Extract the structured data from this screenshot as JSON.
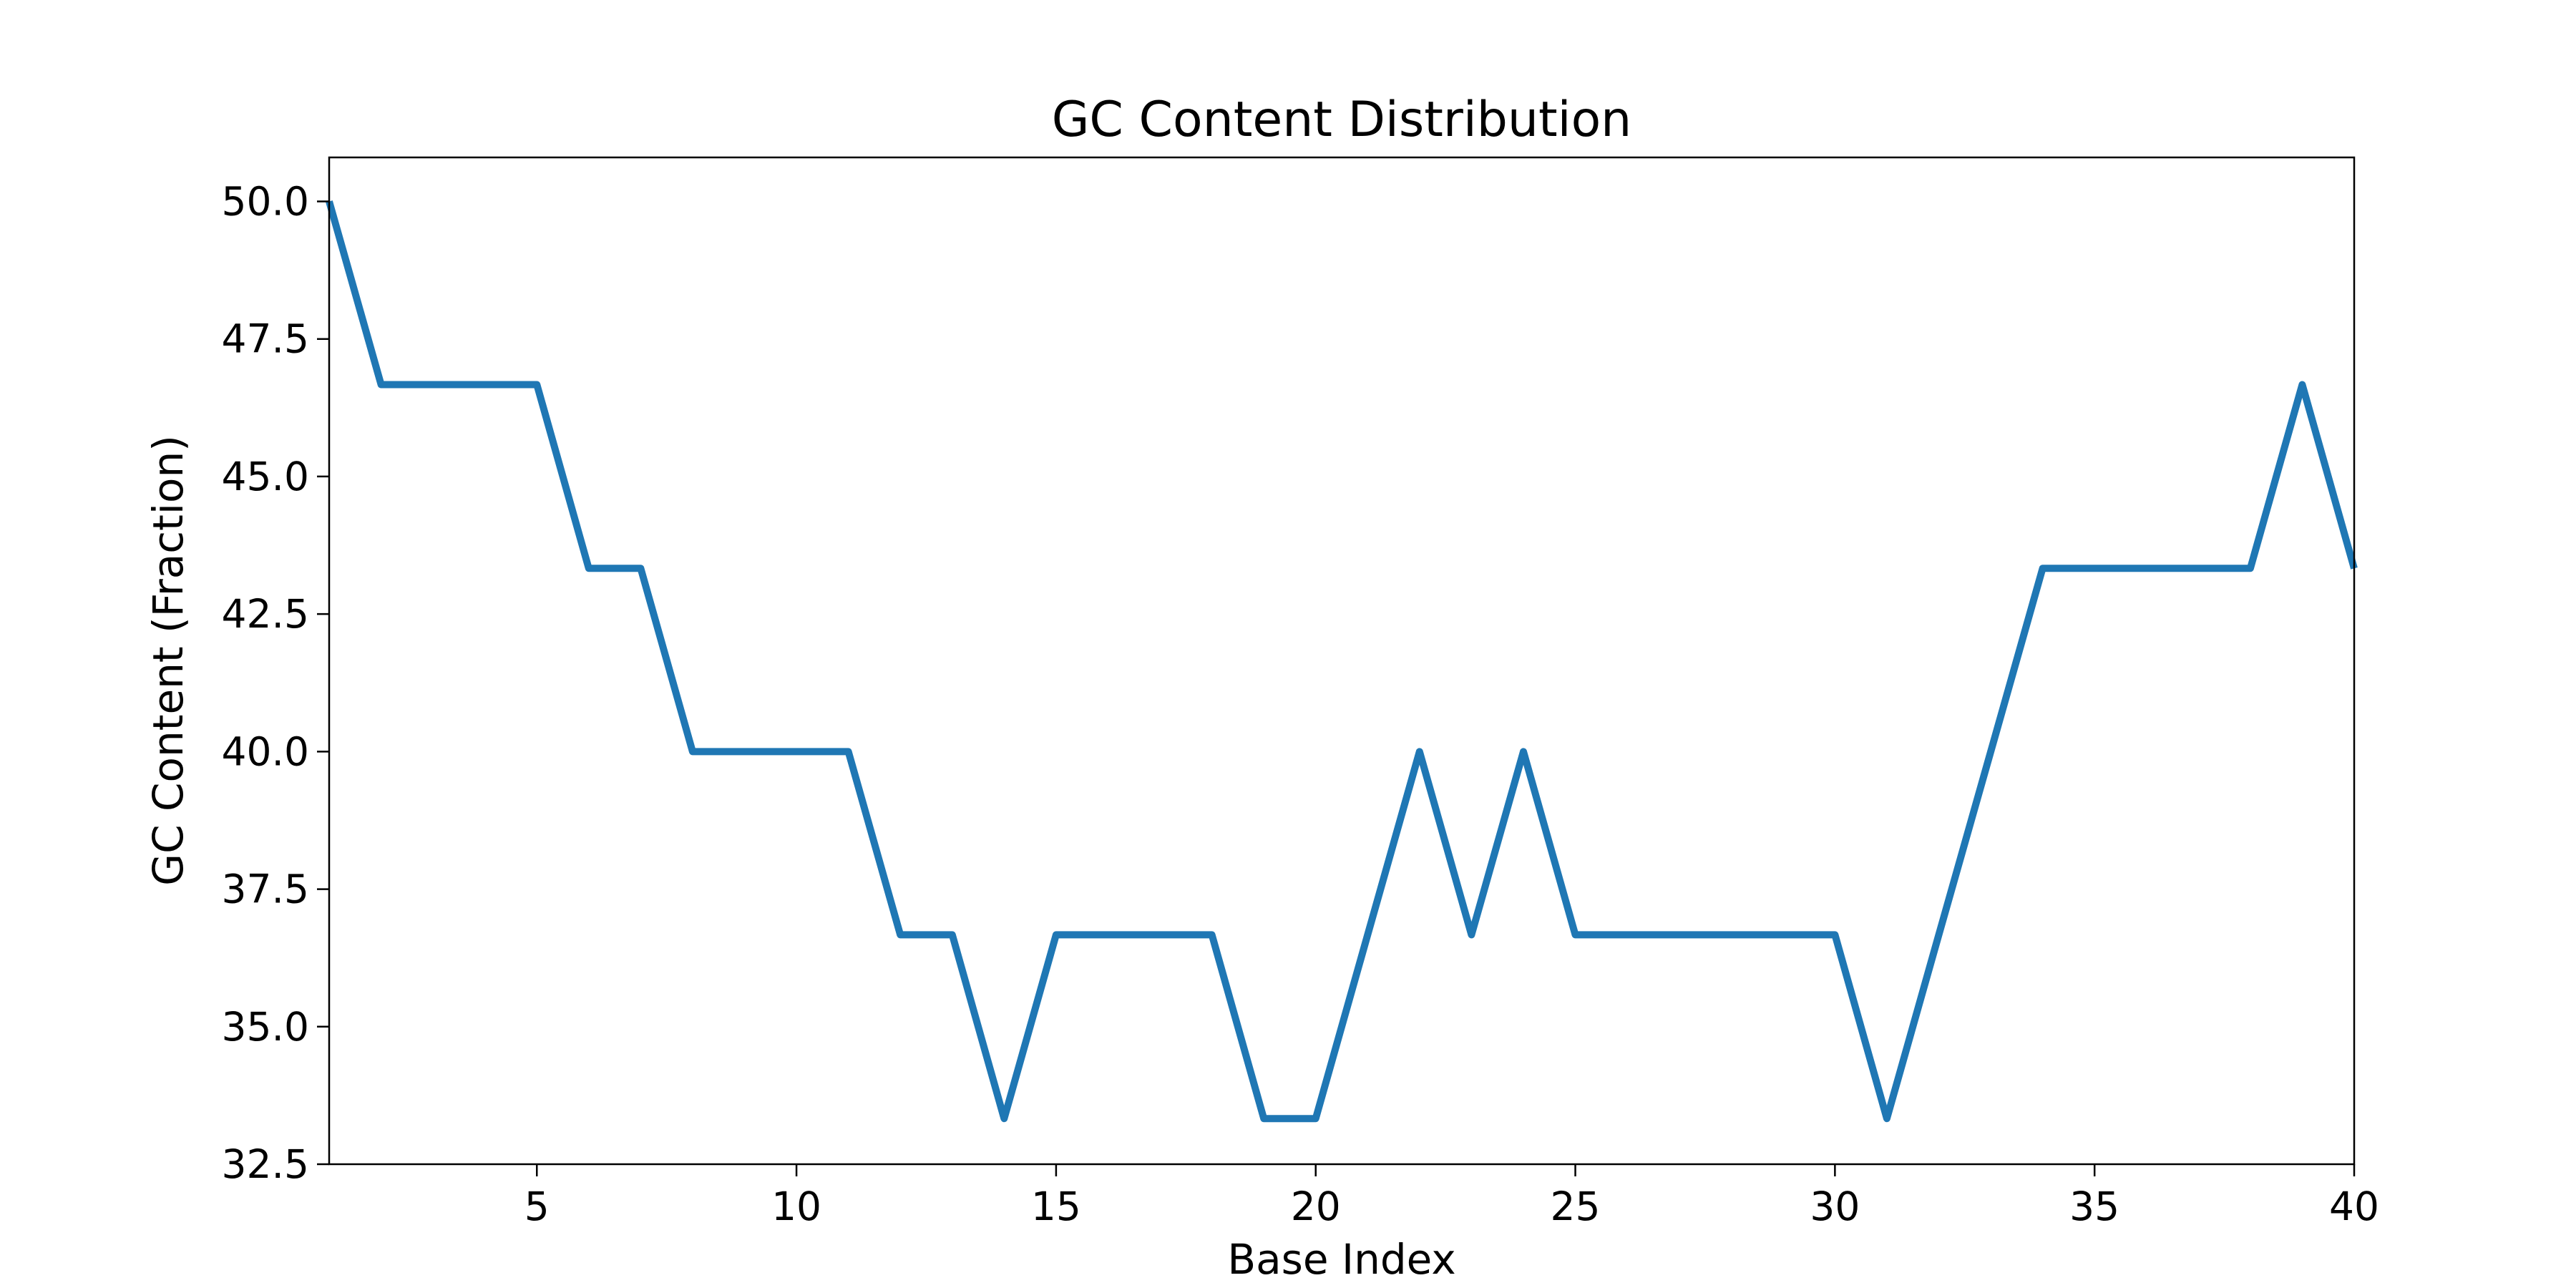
{
  "chart_data": {
    "type": "line",
    "title": "GC Content Distribution",
    "xlabel": "Base Index",
    "ylabel": "GC Content (Fraction)",
    "xlim": [
      1,
      40
    ],
    "ylim": [
      32.5,
      50.8
    ],
    "xticks": [
      5,
      10,
      15,
      20,
      25,
      30,
      35,
      40
    ],
    "yticks": [
      32.5,
      35.0,
      37.5,
      40.0,
      42.5,
      45.0,
      47.5,
      50.0
    ],
    "grid": false,
    "series": [
      {
        "color": "#1f77b4",
        "x": [
          1,
          2,
          3,
          4,
          5,
          6,
          7,
          8,
          9,
          10,
          11,
          12,
          13,
          14,
          15,
          16,
          17,
          18,
          19,
          20,
          21,
          22,
          23,
          24,
          25,
          26,
          27,
          28,
          29,
          30,
          31,
          32,
          33,
          34,
          35,
          36,
          37,
          38,
          39,
          40
        ],
        "values": [
          50.0,
          46.67,
          46.67,
          46.67,
          46.67,
          43.33,
          43.33,
          40.0,
          40.0,
          40.0,
          40.0,
          36.67,
          36.67,
          33.33,
          36.67,
          36.67,
          36.67,
          36.67,
          33.33,
          33.33,
          36.67,
          40.0,
          36.67,
          40.0,
          36.67,
          36.67,
          36.67,
          36.67,
          36.67,
          36.67,
          33.33,
          36.67,
          40.0,
          43.33,
          43.33,
          43.33,
          43.33,
          43.33,
          46.67,
          43.33
        ]
      }
    ]
  }
}
